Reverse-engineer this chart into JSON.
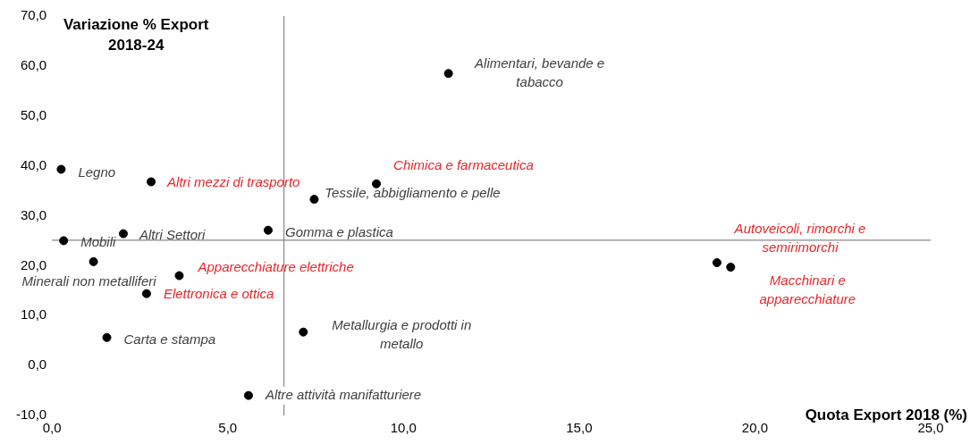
{
  "chart_data": {
    "type": "scatter",
    "xlabel": "Quota Export 2018 (%)",
    "ylabel": "Variazione % Export 2018-24",
    "xlim": [
      0,
      25
    ],
    "ylim": [
      -10,
      70
    ],
    "xticks": [
      {
        "value": 0,
        "label": "0,0"
      },
      {
        "value": 5,
        "label": "5,0"
      },
      {
        "value": 10,
        "label": "10,0"
      },
      {
        "value": 15,
        "label": "15,0"
      },
      {
        "value": 20,
        "label": "20,0"
      },
      {
        "value": 25,
        "label": "25,0"
      }
    ],
    "yticks": [
      {
        "value": -10,
        "label": "-10,0"
      },
      {
        "value": 0,
        "label": "0,0"
      },
      {
        "value": 10,
        "label": "10,0"
      },
      {
        "value": 20,
        "label": "20,0"
      },
      {
        "value": 30,
        "label": "30,0"
      },
      {
        "value": 40,
        "label": "40,0"
      },
      {
        "value": 50,
        "label": "50,0"
      },
      {
        "value": 60,
        "label": "60,0"
      },
      {
        "value": 70,
        "label": "70,0"
      }
    ],
    "grid": false,
    "legend": false,
    "marker": "circle",
    "ref_lines": [
      {
        "axis": "x",
        "value": 6.6,
        "color": "#888888"
      },
      {
        "axis": "y",
        "value": 25.1,
        "color": "#888888"
      }
    ],
    "series": [
      {
        "color": "#000000",
        "x": [
          11.28,
          0.26,
          2.82,
          9.23,
          7.46,
          2.03,
          6.15,
          0.33,
          1.18,
          3.62,
          2.69,
          1.56,
          7.15,
          5.59,
          18.92,
          19.31
        ],
        "values": [
          58.5,
          39.3,
          36.8,
          36.4,
          33.3,
          26.4,
          27.1,
          25.0,
          20.8,
          18.0,
          14.4,
          5.6,
          6.7,
          -6.0,
          20.6,
          19.7
        ]
      }
    ],
    "annotations": [
      {
        "text": "Alimentari, bevande e tabacco",
        "x": 11.28,
        "y": 58.5
      },
      {
        "text": "Legno",
        "x": 0.26,
        "y": 39.3
      },
      {
        "text": "Altri mezzi di trasporto",
        "x": 2.82,
        "y": 36.8
      },
      {
        "text": "Chimica e farmaceutica",
        "x": 9.23,
        "y": 36.4
      },
      {
        "text": "Tessile, abbigliamento e pelle",
        "x": 7.46,
        "y": 33.3
      },
      {
        "text": "Altri Settori",
        "x": 2.03,
        "y": 26.4
      },
      {
        "text": "Gomma e plastica",
        "x": 6.15,
        "y": 27.1
      },
      {
        "text": "Mobili",
        "x": 0.33,
        "y": 25.0
      },
      {
        "text": "Minerali non metalliferi",
        "x": 1.18,
        "y": 20.8
      },
      {
        "text": "Apparecchiature elettriche",
        "x": 3.62,
        "y": 18.0
      },
      {
        "text": "Elettronica e ottica",
        "x": 2.69,
        "y": 14.4
      },
      {
        "text": "Carta e stampa",
        "x": 1.56,
        "y": 5.6
      },
      {
        "text": "Metallurgia e prodotti in metallo",
        "x": 7.15,
        "y": 6.7
      },
      {
        "text": "Altre attività manifatturiere",
        "x": 5.59,
        "y": -6.0
      },
      {
        "text": "Autoveicoli, rimorchi e semirimorchi",
        "x": 18.92,
        "y": 20.6
      },
      {
        "text": "Macchinari e apparecchiature",
        "x": 19.31,
        "y": 19.7
      }
    ]
  }
}
